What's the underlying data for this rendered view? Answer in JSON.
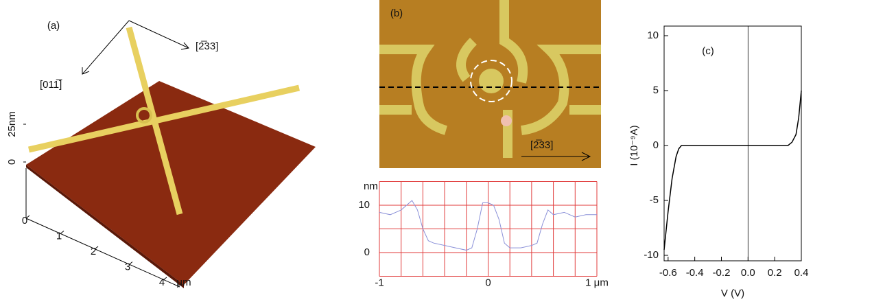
{
  "chart_data": [
    {
      "type": "surface",
      "label": "(a)",
      "directions": [
        "[2̅33]",
        "[011̅]"
      ],
      "zticks": [
        {
          "value": 0,
          "label": "0"
        },
        {
          "value": 25,
          "label": "25nm"
        }
      ],
      "xticks": [
        0,
        1,
        2,
        3,
        4
      ],
      "x_unit": "μm"
    },
    {
      "type": "image",
      "label": "(b)",
      "direction": "[2̅33]"
    },
    {
      "type": "line",
      "ylabel": "nm",
      "xlim": [
        -1,
        1
      ],
      "ylim": [
        -5,
        15
      ],
      "xticks": [
        -1,
        0,
        {
          "value": 1,
          "label": "1 μm"
        }
      ],
      "yticks": [
        0,
        10
      ],
      "grid": true,
      "grid_color": "#e03a3a",
      "xgrid": [
        -1,
        -0.8,
        -0.6,
        -0.4,
        -0.2,
        0,
        0.2,
        0.4,
        0.6,
        0.8,
        1
      ],
      "ygrid": [
        -5,
        0,
        5,
        10,
        15
      ],
      "x": [
        -1,
        -0.9,
        -0.8,
        -0.7,
        -0.65,
        -0.6,
        -0.55,
        -0.5,
        -0.4,
        -0.3,
        -0.2,
        -0.15,
        -0.1,
        -0.05,
        0,
        0.05,
        0.1,
        0.15,
        0.2,
        0.3,
        0.4,
        0.45,
        0.5,
        0.55,
        0.6,
        0.7,
        0.8,
        0.9,
        1
      ],
      "series": [
        {
          "color": "#8a90d8",
          "values": [
            8.5,
            8,
            9,
            11,
            9,
            5,
            2.5,
            2,
            1.5,
            1,
            0.5,
            1,
            5,
            10.5,
            10.5,
            10,
            7,
            2,
            1,
            1,
            1.5,
            2,
            6,
            9,
            8,
            8.5,
            7.5,
            8,
            8
          ]
        }
      ]
    },
    {
      "type": "line",
      "label": "(c)",
      "xlabel": "V (V)",
      "ylabel": "I (10⁻⁹A)",
      "xlim": [
        -0.63,
        0.4
      ],
      "ylim": [
        -10,
        10
      ],
      "xticks": [
        -0.6,
        -0.4,
        -0.2,
        {
          "value": 0,
          "label": "0.0"
        },
        0.2,
        0.4
      ],
      "yticks": [
        -10,
        -5,
        0,
        5,
        10
      ],
      "x": [
        -0.63,
        -0.6,
        -0.57,
        -0.54,
        -0.52,
        -0.5,
        -0.4,
        -0.2,
        0,
        0.2,
        0.3,
        0.33,
        0.36,
        0.38,
        0.4
      ],
      "series": [
        {
          "color": "#000000",
          "values": [
            -9.5,
            -6,
            -3,
            -1,
            -0.3,
            0,
            0,
            0,
            0,
            0,
            0,
            0.3,
            1,
            2.5,
            5
          ]
        }
      ]
    }
  ]
}
